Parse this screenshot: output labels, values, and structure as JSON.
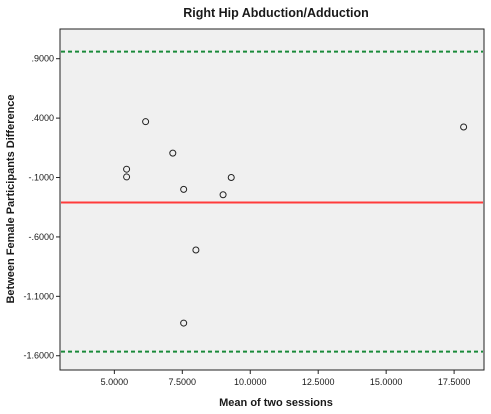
{
  "chart_data": {
    "type": "scatter",
    "title": "Right Hip Abduction/Adduction",
    "xlabel": "Mean of two sessions",
    "ylabel": "Between Female Participants Difference",
    "xlim": [
      3.0,
      18.6
    ],
    "ylim": [
      -1.72,
      1.15
    ],
    "x_ticks": [
      {
        "value": 5.0,
        "label": "5.0000"
      },
      {
        "value": 7.5,
        "label": "7.5000"
      },
      {
        "value": 10.0,
        "label": "10.0000"
      },
      {
        "value": 12.5,
        "label": "12.5000"
      },
      {
        "value": 15.0,
        "label": "15.0000"
      },
      {
        "value": 17.5,
        "label": "17.5000"
      }
    ],
    "y_ticks": [
      {
        "value": 0.9,
        "label": ".9000"
      },
      {
        "value": 0.4,
        "label": ".4000"
      },
      {
        "value": -0.1,
        "label": "-.1000"
      },
      {
        "value": -0.6,
        "label": "-.6000"
      },
      {
        "value": -1.1,
        "label": "-1.1000"
      },
      {
        "value": -1.6,
        "label": "-1.6000"
      }
    ],
    "points": [
      {
        "x": 5.45,
        "y": -0.03
      },
      {
        "x": 5.45,
        "y": -0.095
      },
      {
        "x": 6.15,
        "y": 0.37
      },
      {
        "x": 7.15,
        "y": 0.105
      },
      {
        "x": 7.55,
        "y": -0.2
      },
      {
        "x": 7.55,
        "y": -1.325
      },
      {
        "x": 8.0,
        "y": -0.71
      },
      {
        "x": 9.0,
        "y": -0.245
      },
      {
        "x": 9.3,
        "y": -0.1
      },
      {
        "x": 17.85,
        "y": 0.325
      }
    ],
    "reference_lines": [
      {
        "role": "mean",
        "y": -0.31,
        "color": "#ff3b3b",
        "style": "solid"
      },
      {
        "role": "upper-limit",
        "y": 0.96,
        "color": "#1a8a3a",
        "style": "dashed"
      },
      {
        "role": "lower-limit",
        "y": -1.565,
        "color": "#1a8a3a",
        "style": "dashed"
      }
    ],
    "plot_background": "#f0f0f0",
    "grid": false,
    "legend": "none"
  }
}
